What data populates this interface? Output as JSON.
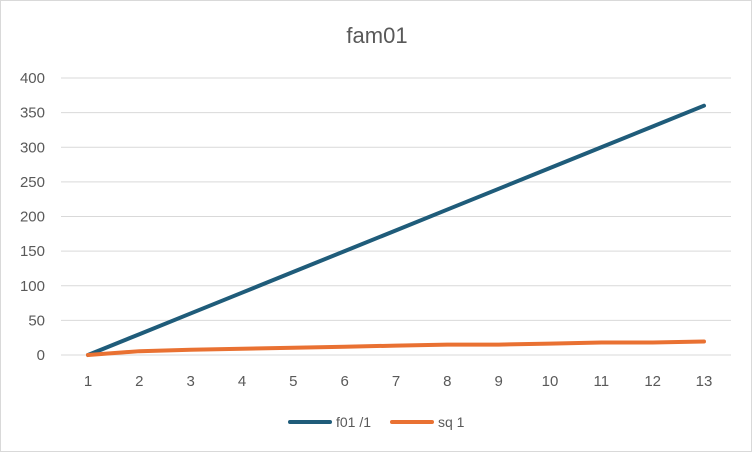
{
  "chart_data": {
    "type": "line",
    "title": "fam01",
    "xlabel": "",
    "ylabel": "",
    "categories": [
      "1",
      "2",
      "3",
      "4",
      "5",
      "6",
      "7",
      "8",
      "9",
      "10",
      "11",
      "12",
      "13"
    ],
    "ylim": [
      0,
      400
    ],
    "yticks": [
      "0",
      "50",
      "100",
      "150",
      "200",
      "250",
      "300",
      "350",
      "400"
    ],
    "grid": true,
    "legend_position": "bottom",
    "series": [
      {
        "name": "f01 /1",
        "color": "#1f5c7a",
        "values": [
          0,
          30,
          60,
          90,
          120,
          150,
          180,
          210,
          240,
          270,
          300,
          330,
          360
        ]
      },
      {
        "name": "sq 1",
        "color": "#e97132",
        "values": [
          0,
          5.5,
          7.5,
          9,
          10.5,
          12,
          13.5,
          15,
          15,
          16.5,
          18,
          18,
          19.5
        ]
      }
    ]
  }
}
